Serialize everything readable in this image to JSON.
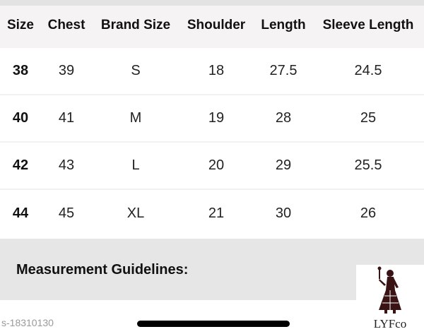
{
  "table": {
    "headers": [
      "Size",
      "Chest",
      "Brand Size",
      "Shoulder",
      "Length",
      "Sleeve Length"
    ],
    "rows": [
      [
        "38",
        "39",
        "S",
        "18",
        "27.5",
        "24.5"
      ],
      [
        "40",
        "41",
        "M",
        "19",
        "28",
        "25"
      ],
      [
        "42",
        "43",
        "L",
        "20",
        "29",
        "25.5"
      ],
      [
        "44",
        "45",
        "XL",
        "21",
        "30",
        "26"
      ]
    ]
  },
  "guidelines": {
    "title": "Measurement Guidelines:"
  },
  "watermark": "s-18310130",
  "logo": {
    "text": "LYFco",
    "color": "#3a1414"
  }
}
